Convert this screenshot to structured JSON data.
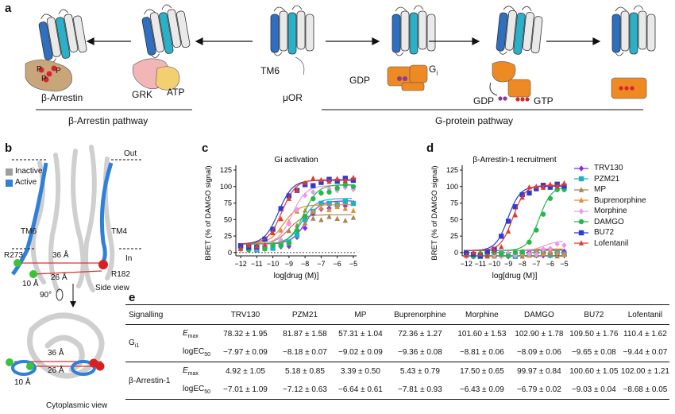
{
  "panels": {
    "a": {
      "letter": "a",
      "receptor_label": "μOR",
      "tm6_label": "TM6",
      "arrestin_label": "β-Arrestin",
      "grk_label": "GRK",
      "atp_label": "ATP",
      "p_label": "P",
      "gdp_label_1": "GDP",
      "gi_label": "Gi",
      "gdp_label_2": "GDP",
      "gtp_label": "GTP",
      "arrestin_pathway": "β-Arrestin pathway",
      "gprotein_pathway": "G-protein pathway",
      "colors": {
        "helix_blue": "#2f6fc0",
        "helix_grey": "#b8b8b8",
        "orange": "#ee8a24",
        "cyan": "#2ab0c8",
        "tan": "#c9a57a",
        "pink": "#f2b6b6",
        "purple": "#8a3a9c",
        "red": "#d8242c"
      }
    },
    "b": {
      "letter": "b",
      "out_label": "Out",
      "in_label": "In",
      "legend": [
        {
          "label": "Inactive",
          "color": "#9e9e9e"
        },
        {
          "label": "Active",
          "color": "#2f80d8"
        }
      ],
      "tm6_label": "TM6",
      "tm4_label": "TM4",
      "r273_label": "R273",
      "r182_label": "R182",
      "dist_36": "36 Å",
      "dist_26": "26 Å",
      "dist_10": "10 Å",
      "side_view": "Side view",
      "rotation": "90°",
      "cyto_36": "36 Å",
      "cyto_26": "26 Å",
      "cyto_10": "10 Å",
      "cytoplasmic_view": "Cytoplasmic view"
    },
    "c": {
      "letter": "c",
      "title": "Gi activation",
      "ylabel": "BRET (% of DAMGO signal)",
      "xlabel": "log[drug (M)]"
    },
    "d": {
      "letter": "d",
      "title": "β-Arrestin-1 recruitment",
      "ylabel": "BRET (% of DAMGO signal)",
      "xlabel": "log[drug (M)]"
    },
    "e": {
      "letter": "e",
      "headers": [
        "Signalling",
        "",
        "TRV130",
        "PZM21",
        "MP",
        "Buprenorphine",
        "Morphine",
        "DAMGO",
        "BU72",
        "Lofentanil"
      ],
      "groups": [
        {
          "name": "Gi1",
          "rows": [
            {
              "param": "Emax",
              "values": [
                "78.32 ± 1.95",
                "81.87 ± 1.58",
                "57.31 ± 1.04",
                "72.36 ± 1.27",
                "101.60 ± 1.53",
                "102.90 ± 1.78",
                "109.50 ± 1.76",
                "110.4 ± 1.62"
              ]
            },
            {
              "param": "logEC50",
              "values": [
                "−7.97 ± 0.09",
                "−8.18 ± 0.07",
                "−9.02 ± 0.09",
                "−9.36 ± 0.08",
                "−8.81 ± 0.06",
                "−8.09 ± 0.06",
                "−9.65 ± 0.08",
                "−9.44 ± 0.07"
              ]
            }
          ]
        },
        {
          "name": "β-Arrestin-1",
          "rows": [
            {
              "param": "Emax",
              "values": [
                "4.92 ± 1.05",
                "5.18 ± 0.85",
                "3.39 ± 0.50",
                "5.43 ± 0.79",
                "17.50 ± 0.65",
                "99.97 ± 0.84",
                "100.60 ± 1.05",
                "102.00 ± 1.21"
              ]
            },
            {
              "param": "logEC50",
              "values": [
                "−7.01 ± 1.09",
                "−7.12 ± 0.63",
                "−6.64 ± 0.61",
                "−7.81 ± 0.93",
                "−6.43 ± 0.09",
                "−6.79 ± 0.02",
                "−9.03 ± 0.04",
                "−8.68 ± 0.05"
              ]
            }
          ]
        }
      ]
    }
  },
  "chart_data": [
    {
      "panel": "c",
      "type": "line",
      "title": "Gi activation",
      "xlabel": "log[drug (M)]",
      "ylabel": "BRET (% of DAMGO signal)",
      "xlim": [
        -12.3,
        -4.8
      ],
      "ylim": [
        -5,
        125
      ],
      "xticks": [
        -12,
        -11,
        -10,
        -9,
        -8,
        -7,
        -6,
        -5
      ],
      "yticks": [
        0,
        25,
        50,
        75,
        100,
        125
      ],
      "baseline": 13,
      "series": [
        {
          "name": "TRV130",
          "color": "#8a2be2",
          "marker": "diamond",
          "emax": 78.32,
          "logec50": -7.97
        },
        {
          "name": "PZM21",
          "color": "#1fb1c2",
          "marker": "square",
          "emax": 81.87,
          "logec50": -8.18
        },
        {
          "name": "MP",
          "color": "#a88456",
          "marker": "triangle",
          "emax": 57.31,
          "logec50": -9.02
        },
        {
          "name": "Buprenorphine",
          "color": "#e8892e",
          "marker": "triangle",
          "emax": 72.36,
          "logec50": -9.36
        },
        {
          "name": "Morphine",
          "color": "#e89ae8",
          "marker": "diamond",
          "emax": 101.6,
          "logec50": -8.81
        },
        {
          "name": "DAMGO",
          "color": "#22b94a",
          "marker": "circle",
          "emax": 102.9,
          "logec50": -8.09
        },
        {
          "name": "BU72",
          "color": "#2b3bd6",
          "marker": "square",
          "emax": 109.5,
          "logec50": -9.65
        },
        {
          "name": "Lofentanil",
          "color": "#e23a2a",
          "marker": "triangle",
          "emax": 110.4,
          "logec50": -9.44
        }
      ]
    },
    {
      "panel": "d",
      "type": "line",
      "title": "β-Arrestin-1 recruitment",
      "xlabel": "log[drug (M)]",
      "ylabel": "BRET (% of DAMGO signal)",
      "xlim": [
        -12.3,
        -4.8
      ],
      "ylim": [
        -5,
        125
      ],
      "xticks": [
        -12,
        -11,
        -10,
        -9,
        -8,
        -7,
        -6,
        -5
      ],
      "yticks": [
        0,
        25,
        50,
        75,
        100,
        125
      ],
      "baseline": 3,
      "series": [
        {
          "name": "TRV130",
          "color": "#8a2be2",
          "marker": "diamond",
          "emax": 4.92,
          "logec50": -7.01
        },
        {
          "name": "PZM21",
          "color": "#1fb1c2",
          "marker": "square",
          "emax": 5.18,
          "logec50": -7.12
        },
        {
          "name": "MP",
          "color": "#a88456",
          "marker": "triangle",
          "emax": 3.39,
          "logec50": -6.64
        },
        {
          "name": "Buprenorphine",
          "color": "#e8892e",
          "marker": "triangle",
          "emax": 5.43,
          "logec50": -7.81
        },
        {
          "name": "Morphine",
          "color": "#e89ae8",
          "marker": "diamond",
          "emax": 17.5,
          "logec50": -6.43
        },
        {
          "name": "DAMGO",
          "color": "#22b94a",
          "marker": "circle",
          "emax": 99.97,
          "logec50": -6.79
        },
        {
          "name": "BU72",
          "color": "#2b3bd6",
          "marker": "square",
          "emax": 100.6,
          "logec50": -9.03
        },
        {
          "name": "Lofentanil",
          "color": "#e23a2a",
          "marker": "triangle",
          "emax": 102.0,
          "logec50": -8.68
        }
      ]
    }
  ]
}
